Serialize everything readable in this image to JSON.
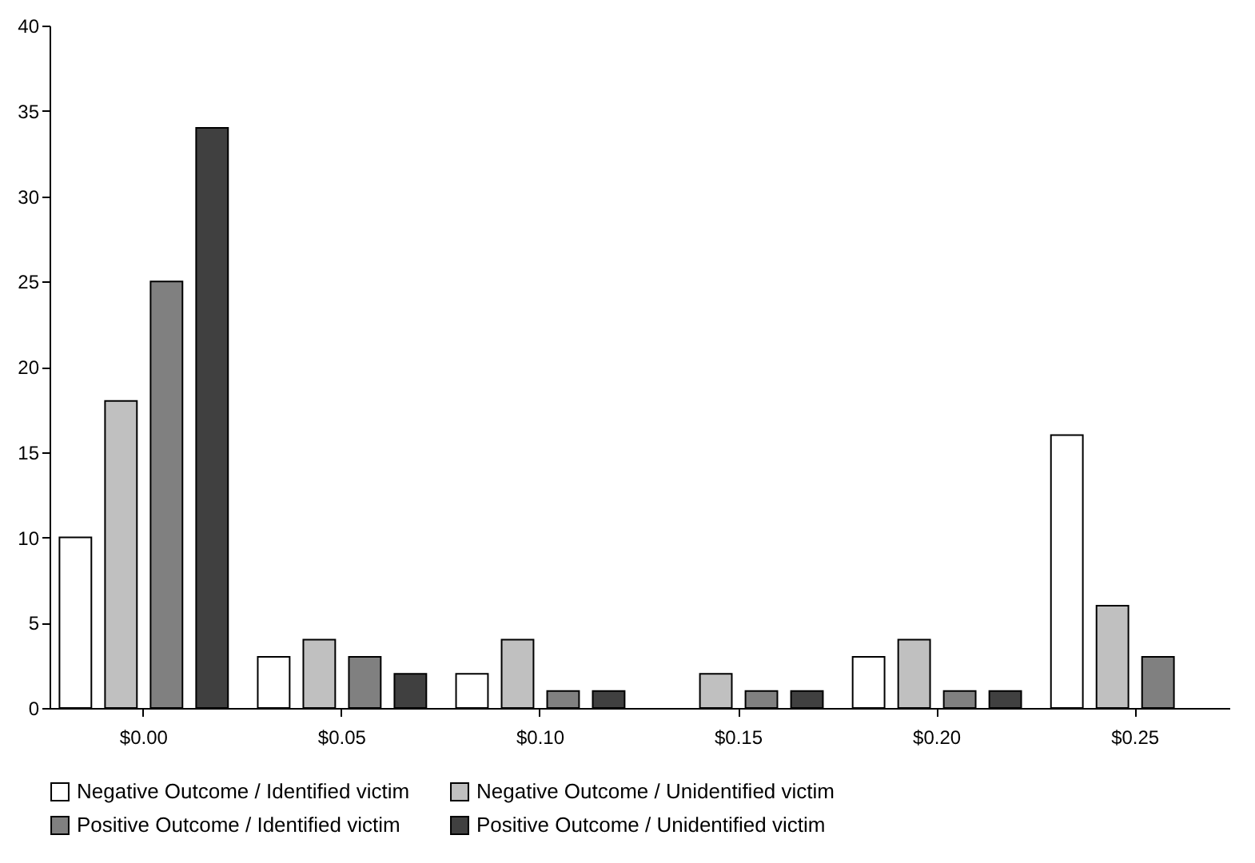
{
  "chart_data": {
    "type": "bar",
    "categories": [
      "$0.00",
      "$0.05",
      "$0.10",
      "$0.15",
      "$0.20",
      "$0.25"
    ],
    "series": [
      {
        "name": "Negative Outcome /  Identified victim",
        "color": "#ffffff",
        "values": [
          10,
          3,
          2,
          null,
          3,
          16
        ]
      },
      {
        "name": "Negative Outcome /  Unidentified victim",
        "color": "#c0c0c0",
        "values": [
          18,
          4,
          4,
          2,
          4,
          6
        ]
      },
      {
        "name": "Positive Outcome /  Identified victim",
        "color": "#808080",
        "values": [
          25,
          3,
          1,
          1,
          1,
          3
        ]
      },
      {
        "name": "Positive Outcome /  Unidentified victim",
        "color": "#404040",
        "values": [
          34,
          2,
          1,
          1,
          1,
          null
        ]
      }
    ],
    "ylim": [
      0,
      40
    ],
    "yticks": [
      0,
      5,
      10,
      15,
      20,
      25,
      30,
      35,
      40
    ],
    "grid": false,
    "legend": "bottom"
  }
}
